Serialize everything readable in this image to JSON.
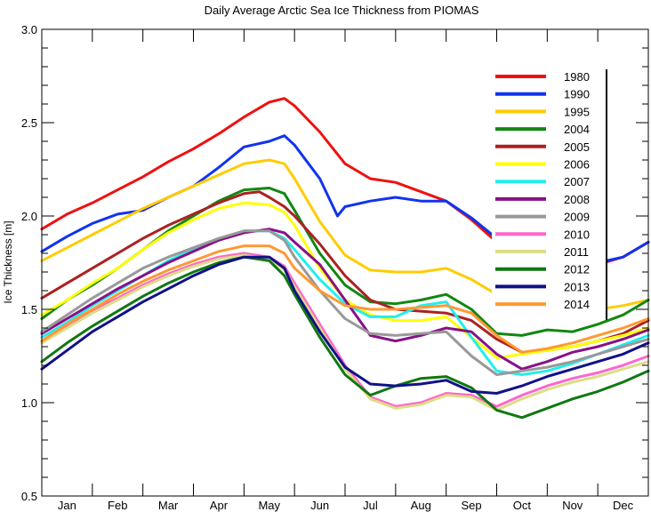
{
  "chart_data": {
    "type": "line",
    "title": "Daily Average Arctic Sea Ice Thickness from PIOMAS",
    "xlabel": "",
    "ylabel": "Ice Thickness  [m]",
    "x_units": "month (1 = Jan 1, 13 = end of Dec)",
    "xlim": [
      1,
      13
    ],
    "ylim": [
      0.5,
      3.0
    ],
    "y_ticks": [
      "0.5",
      "1.0",
      "1.5",
      "2.0",
      "2.5",
      "3.0"
    ],
    "months": [
      "Jan",
      "Feb",
      "Mar",
      "Apr",
      "May",
      "Jun",
      "Jul",
      "Aug",
      "Sep",
      "Oct",
      "Nov",
      "Dec"
    ],
    "grid": false,
    "legend_position": "top-right",
    "series": [
      {
        "name": "1980",
        "color": "#ee1111",
        "x": [
          1,
          1.5,
          2,
          2.5,
          3,
          3.5,
          4,
          4.5,
          5,
          5.5,
          5.8,
          6,
          6.5,
          7,
          7.5,
          8,
          8.5,
          9,
          9.5,
          10,
          10.5,
          11,
          11.5,
          12,
          12.5,
          13
        ],
        "y": [
          1.93,
          2.01,
          2.07,
          2.14,
          2.21,
          2.29,
          2.36,
          2.44,
          2.53,
          2.61,
          2.63,
          2.59,
          2.45,
          2.28,
          2.2,
          2.18,
          2.13,
          2.08,
          1.98,
          1.86,
          1.72,
          1.67,
          1.7,
          1.74,
          1.78,
          1.86
        ]
      },
      {
        "name": "1990",
        "color": "#1133ee",
        "x": [
          1,
          1.5,
          2,
          2.5,
          3,
          3.5,
          4,
          4.5,
          5,
          5.5,
          5.8,
          6,
          6.5,
          6.85,
          7,
          7.5,
          8,
          8.5,
          9,
          9.5,
          10,
          10.5,
          11,
          11.5,
          12,
          12.5,
          13
        ],
        "y": [
          1.81,
          1.89,
          1.96,
          2.01,
          2.03,
          2.1,
          2.16,
          2.26,
          2.37,
          2.4,
          2.43,
          2.38,
          2.2,
          2.0,
          2.05,
          2.08,
          2.1,
          2.08,
          2.08,
          1.99,
          1.88,
          1.76,
          1.74,
          1.75,
          1.75,
          1.78,
          1.86
        ]
      },
      {
        "name": "1995",
        "color": "#ffcc00",
        "x": [
          1,
          1.5,
          2,
          2.5,
          3,
          3.5,
          4,
          4.5,
          5,
          5.5,
          5.8,
          6,
          6.5,
          7,
          7.5,
          8,
          8.5,
          9,
          9.5,
          10,
          10.5,
          11,
          11.5,
          12,
          12.5,
          13
        ],
        "y": [
          1.76,
          1.83,
          1.9,
          1.97,
          2.04,
          2.1,
          2.16,
          2.22,
          2.28,
          2.3,
          2.28,
          2.2,
          1.97,
          1.79,
          1.71,
          1.7,
          1.7,
          1.72,
          1.66,
          1.58,
          1.52,
          1.49,
          1.49,
          1.5,
          1.52,
          1.55
        ]
      },
      {
        "name": "2004",
        "color": "#118811",
        "x": [
          1,
          1.5,
          2,
          2.5,
          3,
          3.5,
          4,
          4.5,
          5,
          5.5,
          5.8,
          6,
          6.5,
          7,
          7.5,
          8,
          8.5,
          9,
          9.5,
          10,
          10.5,
          11,
          11.5,
          12,
          12.5,
          13
        ],
        "y": [
          1.45,
          1.55,
          1.63,
          1.72,
          1.82,
          1.92,
          2.0,
          2.08,
          2.14,
          2.15,
          2.12,
          2.03,
          1.8,
          1.63,
          1.54,
          1.53,
          1.55,
          1.58,
          1.5,
          1.37,
          1.36,
          1.39,
          1.38,
          1.42,
          1.47,
          1.55
        ]
      },
      {
        "name": "2005",
        "color": "#aa2222",
        "x": [
          1,
          1.5,
          2,
          2.5,
          3,
          3.5,
          4,
          4.5,
          5,
          5.3,
          5.5,
          5.8,
          6,
          6.5,
          7,
          7.5,
          8,
          8.5,
          9,
          9.5,
          10,
          10.5,
          11,
          11.5,
          12,
          12.5,
          13
        ],
        "y": [
          1.56,
          1.64,
          1.72,
          1.8,
          1.88,
          1.95,
          2.01,
          2.07,
          2.12,
          2.13,
          2.1,
          2.05,
          2.0,
          1.85,
          1.68,
          1.55,
          1.5,
          1.49,
          1.48,
          1.44,
          1.34,
          1.27,
          1.28,
          1.3,
          1.33,
          1.37,
          1.44
        ]
      },
      {
        "name": "2006",
        "color": "#ffff00",
        "x": [
          1,
          1.5,
          2,
          2.5,
          3,
          3.5,
          4,
          4.5,
          5,
          5.5,
          5.8,
          6,
          6.5,
          7,
          7.5,
          8,
          8.5,
          9,
          9.5,
          10,
          10.5,
          11,
          11.5,
          12,
          12.5,
          13
        ],
        "y": [
          1.47,
          1.55,
          1.64,
          1.72,
          1.82,
          1.91,
          1.98,
          2.04,
          2.07,
          2.06,
          2.02,
          1.95,
          1.72,
          1.55,
          1.47,
          1.44,
          1.44,
          1.46,
          1.35,
          1.24,
          1.26,
          1.28,
          1.3,
          1.33,
          1.36,
          1.4
        ]
      },
      {
        "name": "2007",
        "color": "#22eeee",
        "x": [
          1,
          1.5,
          2,
          2.5,
          3,
          3.5,
          4,
          4.5,
          5,
          5.5,
          5.8,
          6,
          6.5,
          7,
          7.5,
          8,
          8.5,
          9,
          9.5,
          10,
          10.5,
          11,
          11.5,
          12,
          12.5,
          13
        ],
        "y": [
          1.35,
          1.43,
          1.52,
          1.6,
          1.68,
          1.76,
          1.82,
          1.87,
          1.92,
          1.92,
          1.88,
          1.82,
          1.66,
          1.53,
          1.46,
          1.46,
          1.52,
          1.54,
          1.35,
          1.17,
          1.15,
          1.17,
          1.21,
          1.26,
          1.31,
          1.36
        ]
      },
      {
        "name": "2008",
        "color": "#881188",
        "x": [
          1,
          1.5,
          2,
          2.5,
          3,
          3.5,
          4,
          4.5,
          5,
          5.5,
          5.8,
          6,
          6.5,
          7,
          7.5,
          8,
          8.5,
          9,
          9.5,
          10,
          10.5,
          11,
          11.5,
          12,
          12.5,
          13
        ],
        "y": [
          1.37,
          1.45,
          1.53,
          1.61,
          1.68,
          1.75,
          1.81,
          1.87,
          1.91,
          1.93,
          1.91,
          1.86,
          1.74,
          1.55,
          1.36,
          1.33,
          1.36,
          1.4,
          1.38,
          1.26,
          1.18,
          1.22,
          1.27,
          1.3,
          1.34,
          1.39
        ]
      },
      {
        "name": "2009",
        "color": "#999999",
        "x": [
          1,
          1.5,
          2,
          2.5,
          3,
          3.5,
          4,
          4.5,
          5,
          5.5,
          5.8,
          6,
          6.5,
          7,
          7.5,
          8,
          8.5,
          9,
          9.5,
          10,
          10.5,
          11,
          11.5,
          12,
          12.5,
          13
        ],
        "y": [
          1.38,
          1.47,
          1.56,
          1.64,
          1.72,
          1.78,
          1.83,
          1.88,
          1.92,
          1.92,
          1.87,
          1.78,
          1.6,
          1.45,
          1.37,
          1.36,
          1.37,
          1.38,
          1.25,
          1.15,
          1.17,
          1.19,
          1.22,
          1.26,
          1.3,
          1.34
        ]
      },
      {
        "name": "2010",
        "color": "#ff66cc",
        "x": [
          1,
          1.5,
          2,
          2.5,
          3,
          3.5,
          4,
          4.5,
          5,
          5.5,
          5.8,
          6,
          6.5,
          7,
          7.5,
          8,
          8.5,
          9,
          9.5,
          10,
          10.5,
          11,
          11.5,
          12,
          12.5,
          13
        ],
        "y": [
          1.33,
          1.41,
          1.49,
          1.56,
          1.63,
          1.69,
          1.74,
          1.78,
          1.8,
          1.78,
          1.73,
          1.64,
          1.42,
          1.2,
          1.03,
          0.98,
          1.0,
          1.05,
          1.04,
          0.98,
          1.04,
          1.09,
          1.13,
          1.16,
          1.2,
          1.25
        ]
      },
      {
        "name": "2011",
        "color": "#dddd88",
        "x": [
          1,
          1.5,
          2,
          2.5,
          3,
          3.5,
          4,
          4.5,
          5,
          5.5,
          5.8,
          6,
          6.5,
          7,
          7.5,
          8,
          8.5,
          9,
          9.5,
          10,
          10.5,
          11,
          11.5,
          12,
          12.5,
          13
        ],
        "y": [
          1.32,
          1.4,
          1.48,
          1.55,
          1.62,
          1.68,
          1.73,
          1.77,
          1.79,
          1.77,
          1.71,
          1.62,
          1.4,
          1.18,
          1.02,
          0.97,
          0.99,
          1.04,
          1.03,
          0.96,
          1.02,
          1.07,
          1.11,
          1.14,
          1.18,
          1.22
        ]
      },
      {
        "name": "2012",
        "color": "#117711",
        "x": [
          1,
          1.5,
          2,
          2.5,
          3,
          3.5,
          4,
          4.5,
          5,
          5.5,
          5.8,
          6,
          6.5,
          7,
          7.5,
          8,
          8.5,
          9,
          9.5,
          10,
          10.5,
          11,
          11.5,
          12,
          12.5,
          13
        ],
        "y": [
          1.22,
          1.32,
          1.41,
          1.49,
          1.57,
          1.64,
          1.7,
          1.75,
          1.78,
          1.76,
          1.68,
          1.58,
          1.35,
          1.15,
          1.04,
          1.09,
          1.13,
          1.14,
          1.08,
          0.96,
          0.92,
          0.97,
          1.02,
          1.06,
          1.11,
          1.17
        ]
      },
      {
        "name": "2013",
        "color": "#111188",
        "x": [
          1,
          1.5,
          2,
          2.5,
          3,
          3.5,
          4,
          4.5,
          5,
          5.5,
          5.8,
          6,
          6.5,
          7,
          7.5,
          8,
          8.5,
          9,
          9.5,
          10,
          10.5,
          11,
          11.5,
          12,
          12.5,
          13
        ],
        "y": [
          1.18,
          1.28,
          1.38,
          1.46,
          1.54,
          1.61,
          1.68,
          1.74,
          1.78,
          1.78,
          1.72,
          1.6,
          1.38,
          1.19,
          1.1,
          1.09,
          1.1,
          1.12,
          1.06,
          1.05,
          1.09,
          1.14,
          1.18,
          1.22,
          1.26,
          1.32
        ]
      },
      {
        "name": "2014",
        "color": "#ff9933",
        "x": [
          1,
          1.5,
          2,
          2.5,
          3,
          3.5,
          4,
          4.5,
          5,
          5.5,
          5.8,
          6,
          6.5,
          7,
          7.5,
          8,
          8.5,
          9,
          9.5,
          10,
          10.5,
          11,
          11.5,
          12,
          12.5,
          13
        ],
        "y": [
          1.33,
          1.42,
          1.5,
          1.58,
          1.65,
          1.71,
          1.76,
          1.81,
          1.84,
          1.84,
          1.8,
          1.72,
          1.6,
          1.52,
          1.5,
          1.5,
          1.51,
          1.52,
          1.48,
          1.36,
          1.27,
          1.29,
          1.32,
          1.36,
          1.4,
          1.45
        ]
      }
    ]
  }
}
